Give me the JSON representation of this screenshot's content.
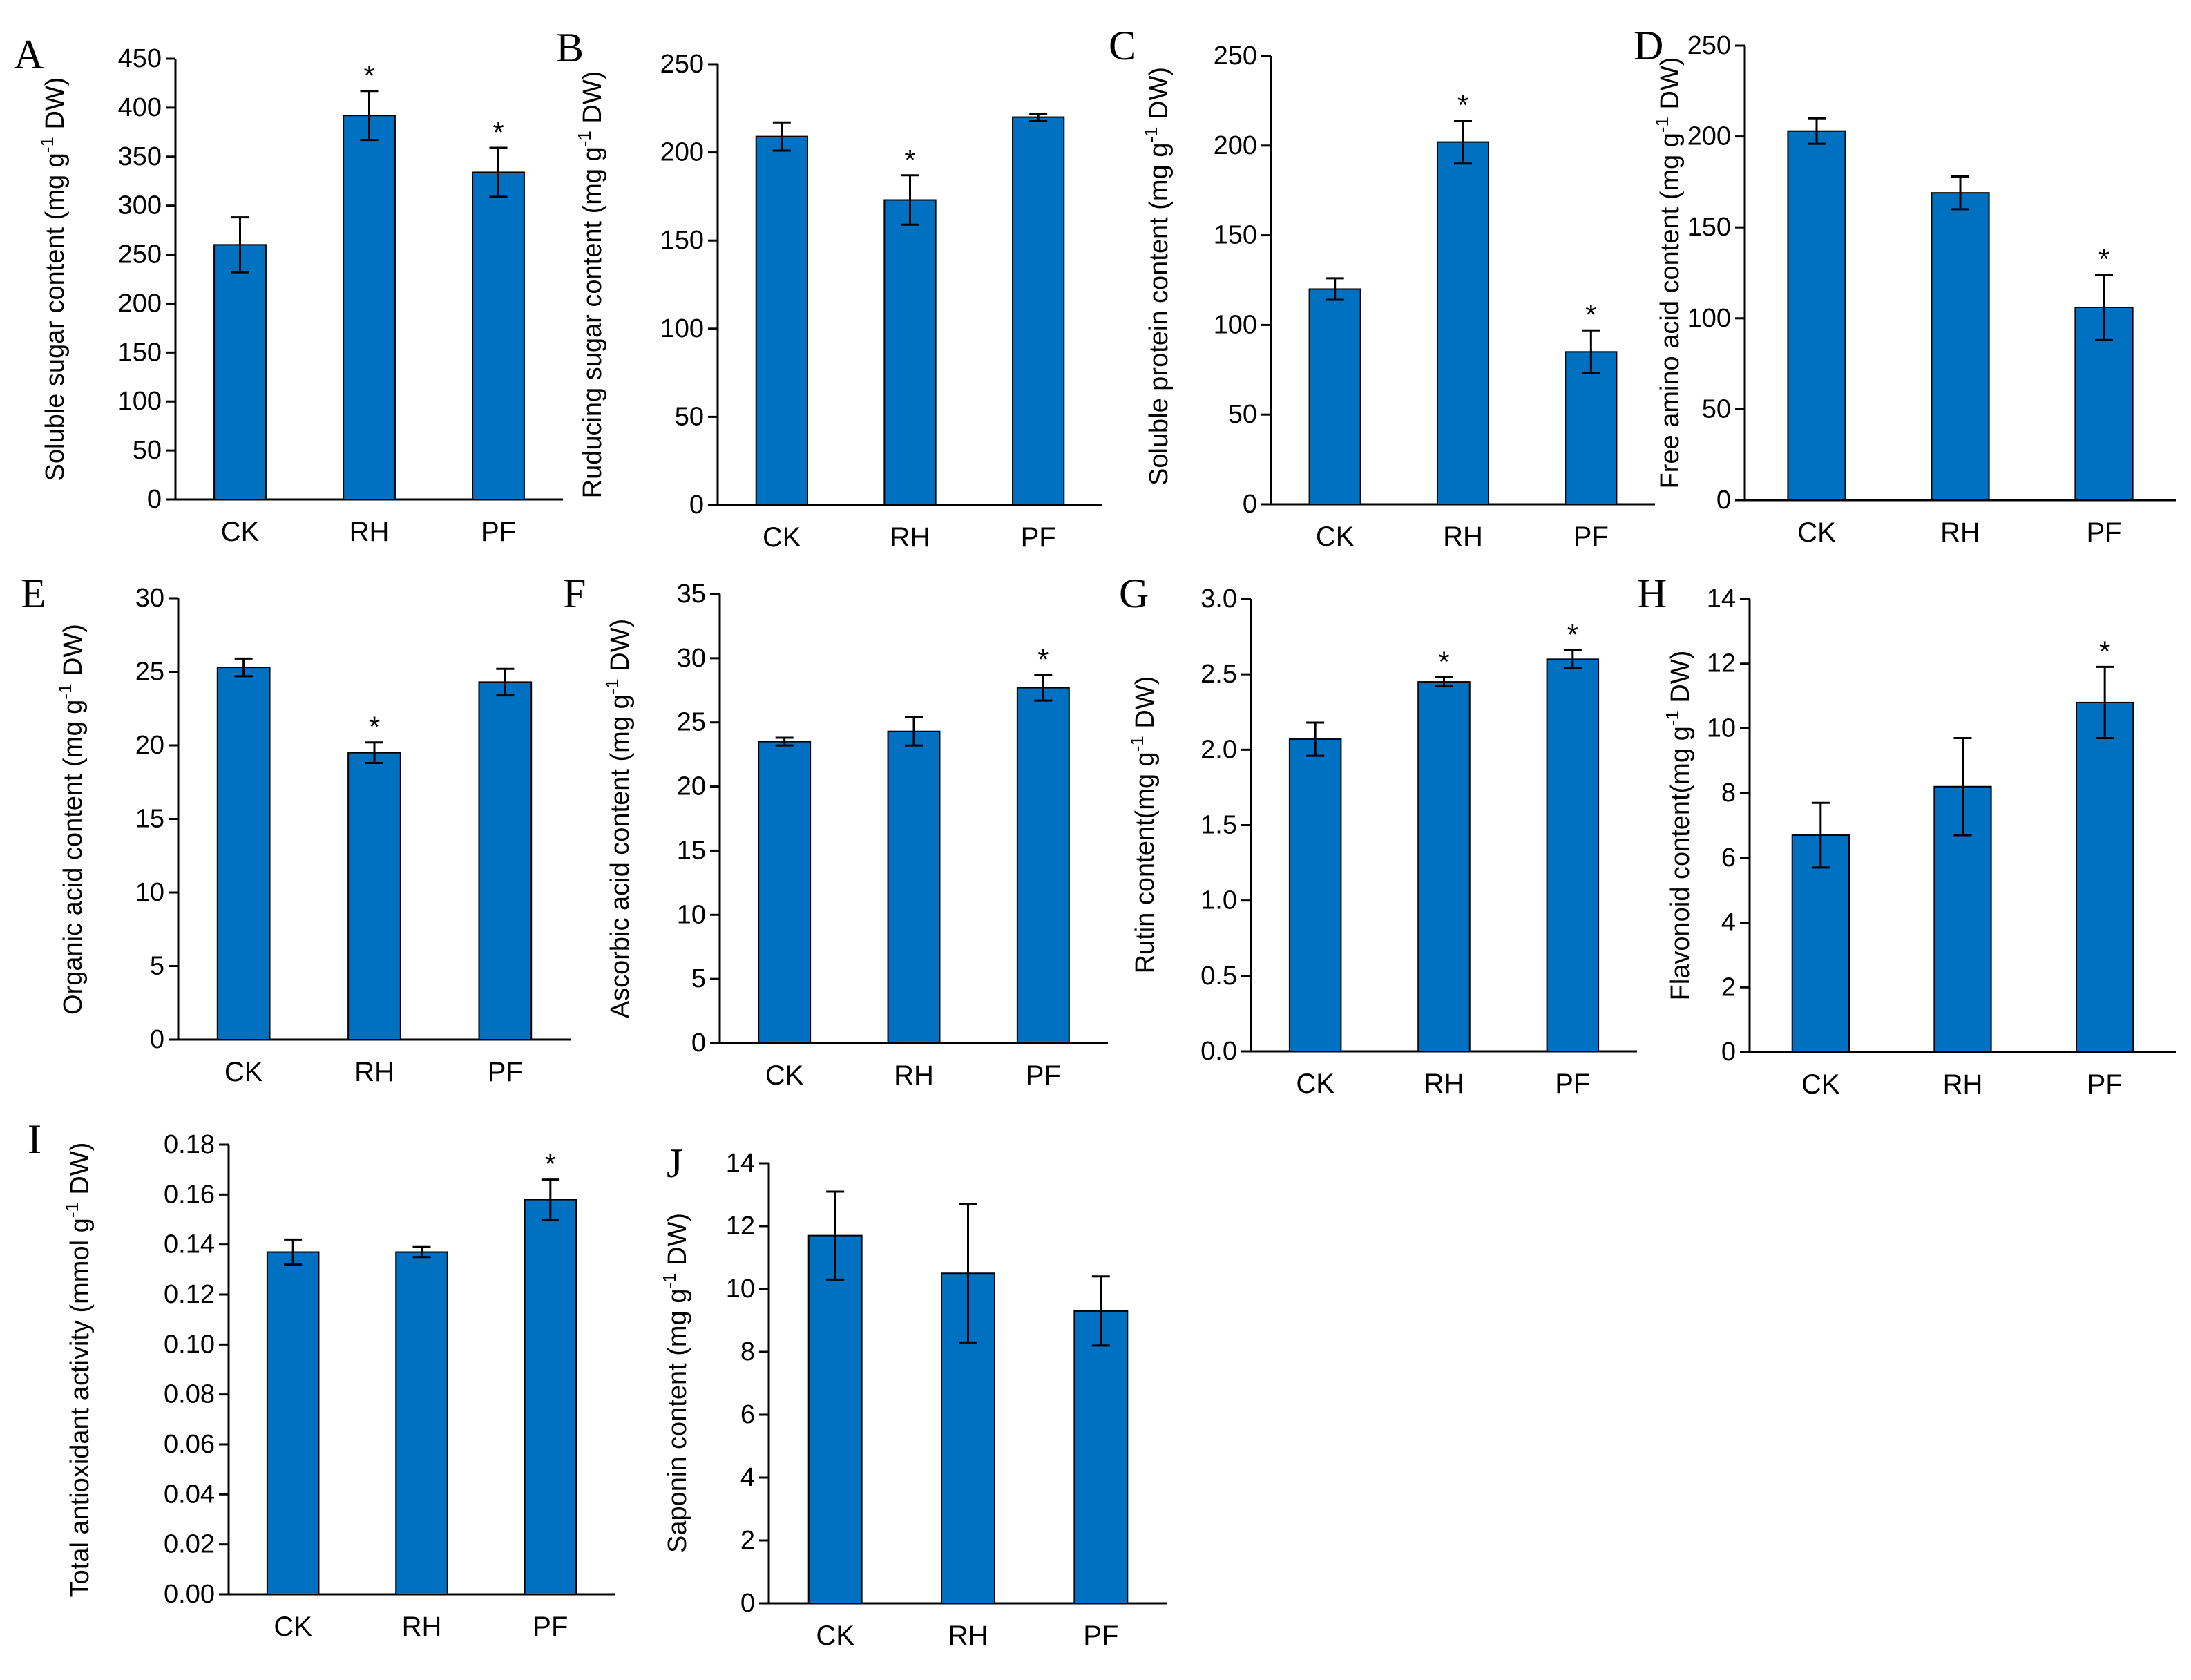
{
  "chart_data": [
    {
      "type": "bar",
      "panel": "A",
      "categories": [
        "CK",
        "RH",
        "PF"
      ],
      "values": [
        260,
        392,
        334
      ],
      "errors": [
        28,
        25,
        25
      ],
      "significant": [
        false,
        true,
        true
      ],
      "ylabel": "Soluble sugar content (mg g",
      "ylabel_sup": "-1",
      "ylabel_end": " DW)",
      "ylim": [
        0,
        450
      ],
      "ticks": [
        "0",
        "50",
        "100",
        "150",
        "200",
        "250",
        "300",
        "350",
        "400",
        "450"
      ],
      "sig_symbol": "*",
      "bar_color": "#0070c0"
    },
    {
      "type": "bar",
      "panel": "B",
      "categories": [
        "CK",
        "RH",
        "PF"
      ],
      "values": [
        209,
        173,
        220
      ],
      "errors": [
        8,
        14,
        2
      ],
      "significant": [
        false,
        true,
        false
      ],
      "ylabel": "Ruducing sugar content (mg g",
      "ylabel_sup": "-1",
      "ylabel_end": " DW)",
      "ylim": [
        0,
        250
      ],
      "ticks": [
        "0",
        "50",
        "100",
        "150",
        "200",
        "250"
      ],
      "sig_symbol": "*",
      "bar_color": "#0070c0"
    },
    {
      "type": "bar",
      "panel": "C",
      "categories": [
        "CK",
        "RH",
        "PF"
      ],
      "values": [
        120,
        202,
        85
      ],
      "errors": [
        6,
        12,
        12
      ],
      "significant": [
        false,
        true,
        true
      ],
      "ylabel": "Soluble protein content (mg g",
      "ylabel_sup": "-1",
      "ylabel_end": " DW)",
      "ylim": [
        0,
        250
      ],
      "ticks": [
        "0",
        "50",
        "100",
        "150",
        "200",
        "250"
      ],
      "sig_symbol": "*",
      "bar_color": "#0070c0"
    },
    {
      "type": "bar",
      "panel": "D",
      "categories": [
        "CK",
        "RH",
        "PF"
      ],
      "values": [
        203,
        169,
        106
      ],
      "errors": [
        7,
        9,
        18
      ],
      "significant": [
        false,
        false,
        true
      ],
      "ylabel": "Free amino acid content (mg g",
      "ylabel_sup": "-1",
      "ylabel_end": " DW)",
      "ylim": [
        0,
        250
      ],
      "ticks": [
        "0",
        "50",
        "100",
        "150",
        "200",
        "250"
      ],
      "sig_symbol": "*",
      "bar_color": "#0070c0"
    },
    {
      "type": "bar",
      "panel": "E",
      "categories": [
        "CK",
        "RH",
        "PF"
      ],
      "values": [
        25.3,
        19.5,
        24.3
      ],
      "errors": [
        0.6,
        0.7,
        0.9
      ],
      "significant": [
        false,
        true,
        false
      ],
      "ylabel": "Organic acid content (mg g",
      "ylabel_sup": "-1",
      "ylabel_end": " DW)",
      "ylim": [
        0,
        30
      ],
      "ticks": [
        "0",
        "5",
        "10",
        "15",
        "20",
        "25",
        "30"
      ],
      "sig_symbol": "*",
      "bar_color": "#0070c0"
    },
    {
      "type": "bar",
      "panel": "F",
      "categories": [
        "CK",
        "RH",
        "PF"
      ],
      "values": [
        23.5,
        24.3,
        27.7
      ],
      "errors": [
        0.3,
        1.1,
        1.0
      ],
      "significant": [
        false,
        false,
        true
      ],
      "ylabel": "Ascorbic acid content (mg g",
      "ylabel_sup": "-1",
      "ylabel_end": " DW)",
      "ylim": [
        0,
        35
      ],
      "ticks": [
        "0",
        "5",
        "10",
        "15",
        "20",
        "25",
        "30",
        "35"
      ],
      "sig_symbol": "*",
      "bar_color": "#0070c0"
    },
    {
      "type": "bar",
      "panel": "G",
      "categories": [
        "CK",
        "RH",
        "PF"
      ],
      "values": [
        2.07,
        2.45,
        2.6
      ],
      "errors": [
        0.11,
        0.03,
        0.06
      ],
      "significant": [
        false,
        true,
        true
      ],
      "ylabel": "Rutin content(mg g",
      "ylabel_sup": "-1",
      "ylabel_end": " DW)",
      "ylim": [
        0,
        3
      ],
      "ticks": [
        "0.0",
        "0.5",
        "1.0",
        "1.5",
        "2.0",
        "2.5",
        "3.0"
      ],
      "sig_symbol": "*",
      "bar_color": "#0070c0"
    },
    {
      "type": "bar",
      "panel": "H",
      "categories": [
        "CK",
        "RH",
        "PF"
      ],
      "values": [
        6.7,
        8.2,
        10.8
      ],
      "errors": [
        1.0,
        1.5,
        1.1
      ],
      "significant": [
        false,
        false,
        true
      ],
      "ylabel": "Flavonoid content(mg g",
      "ylabel_sup": "-1",
      "ylabel_end": " DW)",
      "ylim": [
        0,
        14
      ],
      "ticks": [
        "0",
        "2",
        "4",
        "6",
        "8",
        "10",
        "12",
        "14"
      ],
      "sig_symbol": "*",
      "bar_color": "#0070c0"
    },
    {
      "type": "bar",
      "panel": "I",
      "categories": [
        "CK",
        "RH",
        "PF"
      ],
      "values": [
        0.137,
        0.137,
        0.158
      ],
      "errors": [
        0.005,
        0.002,
        0.008
      ],
      "significant": [
        false,
        false,
        true
      ],
      "ylabel": "Total antioxidant activity (mmol g",
      "ylabel_sup": "-1",
      "ylabel_end": " DW)",
      "ylim": [
        0,
        0.18
      ],
      "ticks": [
        "0.00",
        "0.02",
        "0.04",
        "0.06",
        "0.08",
        "0.10",
        "0.12",
        "0.14",
        "0.16",
        "0.18"
      ],
      "sig_symbol": "*",
      "bar_color": "#0070c0"
    },
    {
      "type": "bar",
      "panel": "J",
      "categories": [
        "CK",
        "RH",
        "PF"
      ],
      "values": [
        11.7,
        10.5,
        9.3
      ],
      "errors": [
        1.4,
        2.2,
        1.1
      ],
      "significant": [
        false,
        false,
        false
      ],
      "ylabel": "Saponin content (mg g",
      "ylabel_sup": "-1",
      "ylabel_end": " DW)",
      "ylim": [
        0,
        14
      ],
      "ticks": [
        "0",
        "2",
        "4",
        "6",
        "8",
        "10",
        "12",
        "14"
      ],
      "sig_symbol": "*",
      "bar_color": "#0070c0"
    }
  ]
}
